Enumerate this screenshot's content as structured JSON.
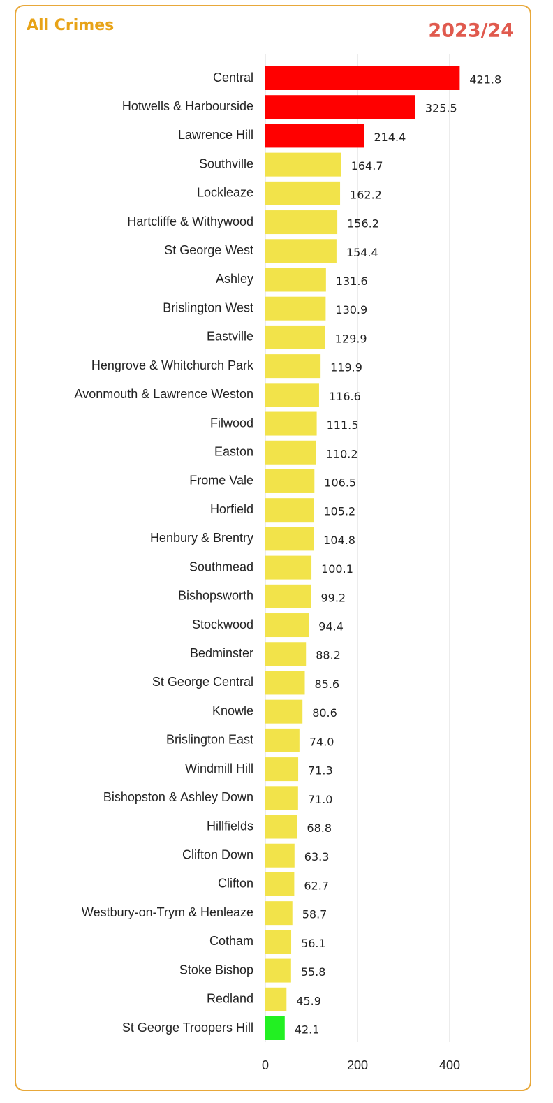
{
  "chart_data": {
    "type": "barh",
    "title": "All Crimes",
    "subtitle": "2023/24",
    "categories": [
      "Central",
      "Hotwells & Harbourside",
      "Lawrence Hill",
      "Southville",
      "Lockleaze",
      "Hartcliffe & Withywood",
      "St George West",
      "Ashley",
      "Brislington West",
      "Eastville",
      "Hengrove & Whitchurch Park",
      "Avonmouth & Lawrence Weston",
      "Filwood",
      "Easton",
      "Frome Vale",
      "Horfield",
      "Henbury & Brentry",
      "Southmead",
      "Bishopsworth",
      "Stockwood",
      "Bedminster",
      "St George Central",
      "Knowle",
      "Brislington East",
      "Windmill Hill",
      "Bishopston & Ashley Down",
      "Hillfields",
      "Clifton Down",
      "Clifton",
      "Westbury-on-Trym & Henleaze",
      "Cotham",
      "Stoke Bishop",
      "Redland",
      "St George Troopers Hill"
    ],
    "values": [
      421.8,
      325.5,
      214.4,
      164.7,
      162.2,
      156.2,
      154.4,
      131.6,
      130.9,
      129.9,
      119.9,
      116.6,
      111.5,
      110.2,
      106.5,
      105.2,
      104.8,
      100.1,
      99.2,
      94.4,
      88.2,
      85.6,
      80.6,
      74.0,
      71.3,
      71.0,
      68.8,
      63.3,
      62.7,
      58.7,
      56.1,
      55.8,
      45.9,
      42.1
    ],
    "value_labels": [
      "421.8",
      "325.5",
      "214.4",
      "164.7",
      "162.2",
      "156.2",
      "154.4",
      "131.6",
      "130.9",
      "129.9",
      "119.9",
      "116.6",
      "111.5",
      "110.2",
      "106.5",
      "105.2",
      "104.8",
      "100.1",
      "99.2",
      "94.4",
      "88.2",
      "85.6",
      "80.6",
      "74.0",
      "71.3",
      "71.0",
      "68.8",
      "63.3",
      "62.7",
      "58.7",
      "56.1",
      "55.8",
      "45.9",
      "42.1"
    ],
    "colors": [
      "#ff0000",
      "#ff0000",
      "#ff0000",
      "#f2e34a",
      "#f2e34a",
      "#f2e34a",
      "#f2e34a",
      "#f2e34a",
      "#f2e34a",
      "#f2e34a",
      "#f2e34a",
      "#f2e34a",
      "#f2e34a",
      "#f2e34a",
      "#f2e34a",
      "#f2e34a",
      "#f2e34a",
      "#f2e34a",
      "#f2e34a",
      "#f2e34a",
      "#f2e34a",
      "#f2e34a",
      "#f2e34a",
      "#f2e34a",
      "#f2e34a",
      "#f2e34a",
      "#f2e34a",
      "#f2e34a",
      "#f2e34a",
      "#f2e34a",
      "#f2e34a",
      "#f2e34a",
      "#f2e34a",
      "#22f022"
    ],
    "xlim": [
      0,
      500
    ],
    "xticks": [
      0,
      200,
      400
    ],
    "grid": true
  }
}
